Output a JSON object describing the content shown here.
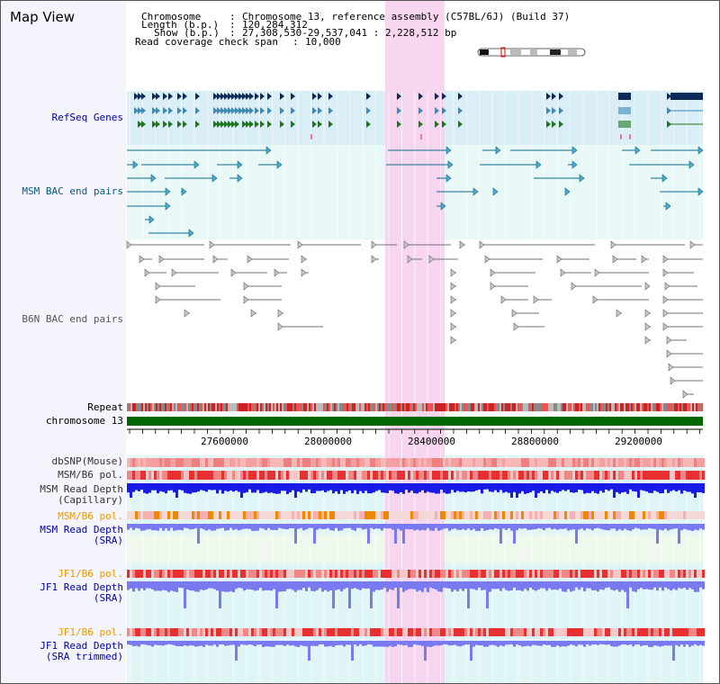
{
  "app_title": "Map View",
  "info": {
    "chromosome_key": "Chromosome",
    "chromosome_val": "Chromosome 13, reference assembly (C57BL/6J) (Build 37)",
    "length_key": "Length (b.p.)",
    "length_val": "120,284,312",
    "show_key": "Show (b.p.)",
    "show_val": "27,308,530-29,537,041 : 2,228,512 bp",
    "span_key": "Read coverage check span",
    "span_val": "10,000"
  },
  "tracks": {
    "refseq": "RefSeq Genes",
    "msm_bac": "MSM BAC end pairs",
    "b6n_bac": "B6N BAC end pairs",
    "repeat": "Repeat",
    "chromosome": "chromosome 13",
    "dbsnp": "dbSNP(Mouse)",
    "msm_b6_pol": "MSM/B6 pol.",
    "msm_depth_cap_1": "MSM Read Depth",
    "msm_depth_cap_2": "(Capillary)",
    "msm_b6_pol_2": "MSM/B6 pol.",
    "msm_depth_sra_1": "MSM Read Depth",
    "msm_depth_sra_2": "(SRA)",
    "jf1_b6_pol": "JF1/B6 pol.",
    "jf1_depth_sra_1": "JF1 Read Depth",
    "jf1_depth_sra_2": "(SRA)",
    "jf1_b6_pol_2": "JF1/B6 pol.",
    "jf1_depth_trim_1": "JF1 Read Depth",
    "jf1_depth_trim_2": "(SRA trimmed)"
  },
  "axis": {
    "ticks": [
      "27600000",
      "28000000",
      "28400000",
      "28800000",
      "29200000"
    ]
  },
  "colors": {
    "refseq_bg": "#daeef8",
    "highlight": "#f7d2ee",
    "refseq_dark": "#0a2a5a",
    "refseq_mid": "#3a8ab8",
    "refseq_green": "#1a7a1a",
    "msm_bac": "#0a6a8a",
    "b6n_bac": "#707070",
    "chromosome_bar": "#006600",
    "depth_blue": "#1a1ae6",
    "depth_light": "#7a7af0",
    "label_blue": "#0000aa",
    "label_orange": "#ee9900"
  }
}
